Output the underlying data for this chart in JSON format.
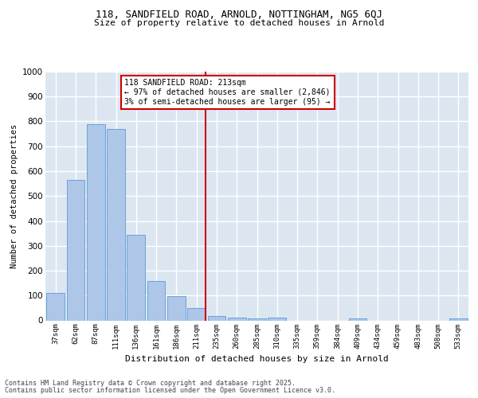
{
  "title1": "118, SANDFIELD ROAD, ARNOLD, NOTTINGHAM, NG5 6QJ",
  "title2": "Size of property relative to detached houses in Arnold",
  "xlabel": "Distribution of detached houses by size in Arnold",
  "ylabel": "Number of detached properties",
  "categories": [
    "37sqm",
    "62sqm",
    "87sqm",
    "111sqm",
    "136sqm",
    "161sqm",
    "186sqm",
    "211sqm",
    "235sqm",
    "260sqm",
    "285sqm",
    "310sqm",
    "335sqm",
    "359sqm",
    "384sqm",
    "409sqm",
    "434sqm",
    "459sqm",
    "483sqm",
    "508sqm",
    "533sqm"
  ],
  "values": [
    110,
    565,
    790,
    770,
    345,
    160,
    97,
    50,
    17,
    12,
    7,
    10,
    0,
    0,
    0,
    7,
    0,
    0,
    0,
    0,
    7
  ],
  "bar_color": "#aec6e8",
  "bar_edge_color": "#5b9bd5",
  "vline_index": 7,
  "vline_color": "#cc0000",
  "annotation_title": "118 SANDFIELD ROAD: 213sqm",
  "annotation_line1": "← 97% of detached houses are smaller (2,846)",
  "annotation_line2": "3% of semi-detached houses are larger (95) →",
  "annotation_box_color": "#cc0000",
  "background_color": "#dce6f1",
  "grid_color": "#ffffff",
  "footer1": "Contains HM Land Registry data © Crown copyright and database right 2025.",
  "footer2": "Contains public sector information licensed under the Open Government Licence v3.0.",
  "ylim": [
    0,
    1000
  ],
  "yticks": [
    0,
    100,
    200,
    300,
    400,
    500,
    600,
    700,
    800,
    900,
    1000
  ]
}
